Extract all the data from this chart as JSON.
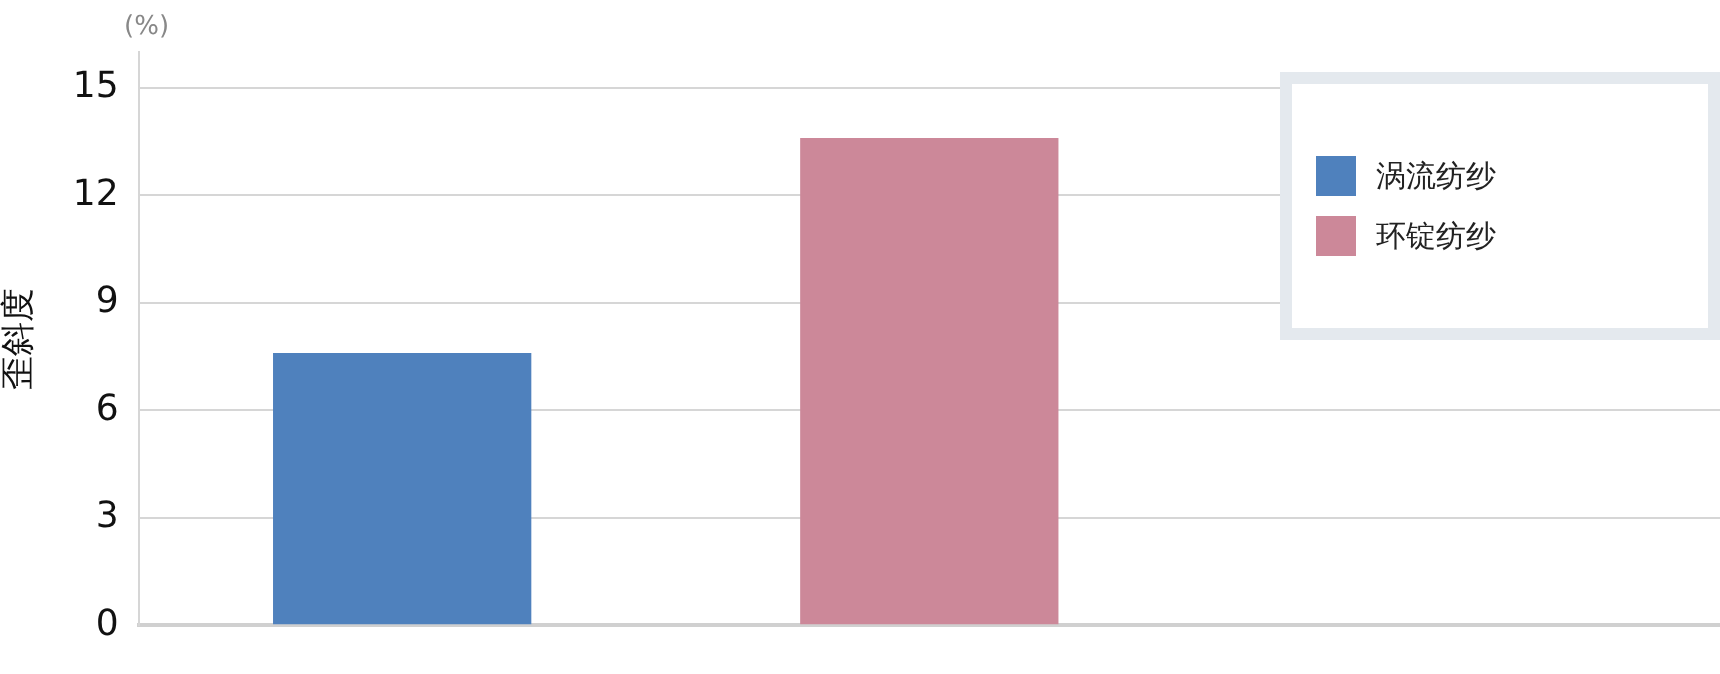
{
  "chart_data": {
    "type": "bar",
    "ylabel": "歪斜度",
    "annotations": [
      "(%)"
    ],
    "categories": [
      null,
      null,
      null
    ],
    "series": [
      {
        "name": "涡流纺纱",
        "color": "#4f81bd",
        "values": [
          7.6,
          null,
          null
        ]
      },
      {
        "name": "环锭纺纱",
        "color": "#cc8899",
        "values": [
          null,
          13.6,
          null
        ]
      }
    ],
    "ylim": [
      0,
      16
    ],
    "yticks": [
      0,
      3,
      6,
      9,
      12,
      15
    ],
    "grid": "y",
    "legend": "top right"
  }
}
